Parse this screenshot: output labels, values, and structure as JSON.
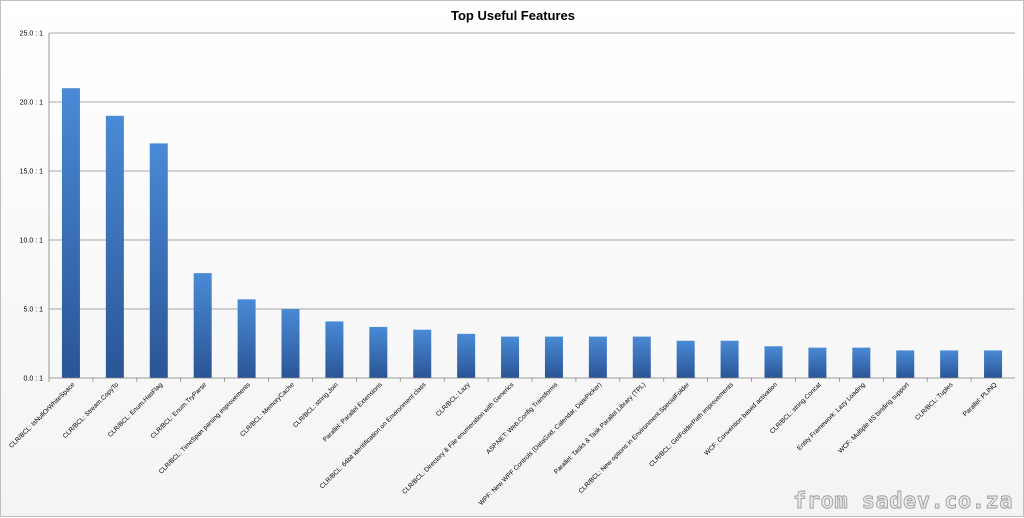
{
  "chart_data": {
    "type": "bar",
    "title": "Top Useful Features",
    "xlabel": "",
    "ylabel": "",
    "ylim": [
      0,
      25
    ],
    "y_ticks": [
      0,
      5,
      10,
      15,
      20,
      25
    ],
    "y_tick_labels": [
      "0.0 : 1",
      "5.0 : 1",
      "10.0 : 1",
      "15.0 : 1",
      "20.0 : 1",
      "25.0 : 1"
    ],
    "grid": true,
    "legend": "none",
    "categories": [
      "CLR/BCL: IsNullOrWhiteSpace",
      "CLR/BCL: Stream.CopyTo",
      "CLR/BCL: Enum.HasFlag",
      "CLR/BCL: Enum.TryParse",
      "CLR/BCL: TimeSpan parsing improvements",
      "CLR/BCL: MemoryCache",
      "CLR/BCL: string.Join",
      "Parallel: Parallel Extensions",
      "CLR/BCL: 64bit identification on Environment class",
      "CLR/BCL: Lazy",
      "CLR/BCL: Directory & File enumeration with Generics",
      "ASP.NET: Web.Config Transforms",
      "WPF: New WPF Controls (DataGrid, Calendar, DatePicker)",
      "Parallel: Tasks & Task Parallel Library (TPL)",
      "CLR/BCL: New options in Environment.SpecialFolder",
      "CLR/BCL: GetFolderPath improvements",
      "WCF: Convention based activation",
      "CLR/BCL: string.Concat",
      "Entity Framework: Lazy Loading",
      "WCF: Multiple IIS binding support",
      "CLR/BCL: Tuples",
      "Parallel: PLINQ"
    ],
    "values": [
      21,
      19,
      17,
      7.6,
      5.7,
      5.0,
      4.1,
      3.7,
      3.5,
      3.2,
      3.0,
      3.0,
      3.0,
      3.0,
      2.7,
      2.7,
      2.3,
      2.2,
      2.2,
      2.0,
      2.0,
      2.0
    ],
    "colors": {
      "bar_top": "#4a8ad6",
      "bar_bottom": "#2a5596",
      "grid": "#8c8c8c",
      "axis": "#7f7f7f"
    }
  },
  "watermark": {
    "text": "from sadev.co.za"
  }
}
